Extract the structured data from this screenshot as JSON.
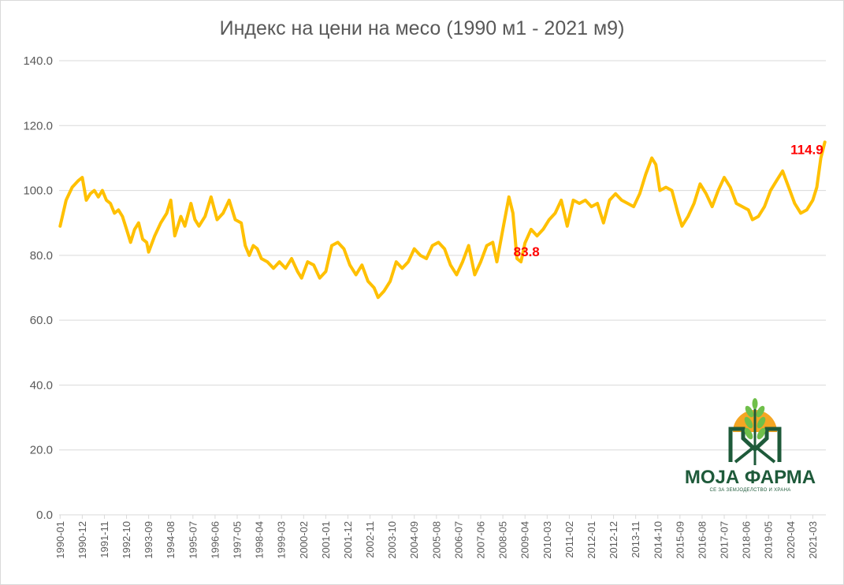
{
  "chart_data": {
    "type": "line",
    "title": "Индекс на цени на месо (1990 м1 - 2021 м9)",
    "xlabel": "",
    "ylabel": "",
    "ylim": [
      0,
      140
    ],
    "yticks": [
      "0.0",
      "20.0",
      "40.0",
      "60.0",
      "80.0",
      "100.0",
      "120.0",
      "140.0"
    ],
    "grid": "horizontal",
    "x_start": "1990-01",
    "x_end": "2021-09",
    "x_tick_labels": [
      "1990-01",
      "1990-12",
      "1991-11",
      "1992-10",
      "1993-09",
      "1994-08",
      "1995-07",
      "1996-06",
      "1997-05",
      "1998-04",
      "1999-03",
      "2000-02",
      "2001-01",
      "2001-12",
      "2002-11",
      "2003-10",
      "2004-09",
      "2005-08",
      "2006-07",
      "2007-06",
      "2008-05",
      "2009-04",
      "2010-03",
      "2011-02",
      "2012-01",
      "2012-12",
      "2013-11",
      "2014-10",
      "2015-09",
      "2016-08",
      "2017-07",
      "2018-06",
      "2019-05",
      "2020-04",
      "2021-03"
    ],
    "series": [
      {
        "name": "",
        "color": "#FFC000",
        "points": [
          [
            "1990-01",
            89
          ],
          [
            "1990-04",
            97
          ],
          [
            "1990-07",
            101
          ],
          [
            "1990-10",
            103
          ],
          [
            "1990-12",
            104
          ],
          [
            "1991-02",
            97
          ],
          [
            "1991-04",
            99
          ],
          [
            "1991-06",
            100
          ],
          [
            "1991-08",
            98
          ],
          [
            "1991-10",
            100
          ],
          [
            "1991-12",
            97
          ],
          [
            "1992-02",
            96
          ],
          [
            "1992-04",
            93
          ],
          [
            "1992-06",
            94
          ],
          [
            "1992-08",
            92
          ],
          [
            "1992-10",
            88
          ],
          [
            "1992-12",
            84
          ],
          [
            "1993-02",
            88
          ],
          [
            "1993-04",
            90
          ],
          [
            "1993-06",
            85
          ],
          [
            "1993-08",
            84
          ],
          [
            "1993-09",
            81
          ],
          [
            "1993-12",
            86
          ],
          [
            "1994-03",
            90
          ],
          [
            "1994-06",
            93
          ],
          [
            "1994-08",
            97
          ],
          [
            "1994-10",
            86
          ],
          [
            "1995-01",
            92
          ],
          [
            "1995-03",
            89
          ],
          [
            "1995-06",
            96
          ],
          [
            "1995-08",
            91
          ],
          [
            "1995-10",
            89
          ],
          [
            "1996-01",
            92
          ],
          [
            "1996-04",
            98
          ],
          [
            "1996-07",
            91
          ],
          [
            "1996-10",
            93
          ],
          [
            "1997-01",
            97
          ],
          [
            "1997-04",
            91
          ],
          [
            "1997-07",
            90
          ],
          [
            "1997-09",
            83
          ],
          [
            "1997-11",
            80
          ],
          [
            "1998-01",
            83
          ],
          [
            "1998-03",
            82
          ],
          [
            "1998-05",
            79
          ],
          [
            "1998-08",
            78
          ],
          [
            "1998-11",
            76
          ],
          [
            "1999-02",
            78
          ],
          [
            "1999-05",
            76
          ],
          [
            "1999-08",
            79
          ],
          [
            "1999-11",
            75
          ],
          [
            "2000-01",
            73
          ],
          [
            "2000-04",
            78
          ],
          [
            "2000-07",
            77
          ],
          [
            "2000-10",
            73
          ],
          [
            "2001-01",
            75
          ],
          [
            "2001-04",
            83
          ],
          [
            "2001-07",
            84
          ],
          [
            "2001-10",
            82
          ],
          [
            "2002-01",
            77
          ],
          [
            "2002-04",
            74
          ],
          [
            "2002-07",
            77
          ],
          [
            "2002-10",
            72
          ],
          [
            "2003-01",
            70
          ],
          [
            "2003-03",
            67
          ],
          [
            "2003-06",
            69
          ],
          [
            "2003-09",
            72
          ],
          [
            "2003-12",
            78
          ],
          [
            "2004-03",
            76
          ],
          [
            "2004-06",
            78
          ],
          [
            "2004-09",
            82
          ],
          [
            "2004-12",
            80
          ],
          [
            "2005-03",
            79
          ],
          [
            "2005-06",
            83
          ],
          [
            "2005-09",
            84
          ],
          [
            "2005-12",
            82
          ],
          [
            "2006-03",
            77
          ],
          [
            "2006-06",
            74
          ],
          [
            "2006-09",
            78
          ],
          [
            "2006-12",
            83
          ],
          [
            "2007-03",
            74
          ],
          [
            "2007-06",
            78
          ],
          [
            "2007-09",
            83
          ],
          [
            "2007-12",
            84
          ],
          [
            "2008-02",
            78
          ],
          [
            "2008-05",
            88
          ],
          [
            "2008-08",
            98
          ],
          [
            "2008-10",
            93
          ],
          [
            "2008-12",
            79
          ],
          [
            "2009-02",
            78
          ],
          [
            "2009-04",
            83.8
          ],
          [
            "2009-07",
            88
          ],
          [
            "2009-10",
            86
          ],
          [
            "2010-01",
            88
          ],
          [
            "2010-04",
            91
          ],
          [
            "2010-07",
            93
          ],
          [
            "2010-10",
            97
          ],
          [
            "2011-01",
            89
          ],
          [
            "2011-04",
            97
          ],
          [
            "2011-07",
            96
          ],
          [
            "2011-10",
            97
          ],
          [
            "2012-01",
            95
          ],
          [
            "2012-04",
            96
          ],
          [
            "2012-07",
            90
          ],
          [
            "2012-10",
            97
          ],
          [
            "2013-01",
            99
          ],
          [
            "2013-04",
            97
          ],
          [
            "2013-07",
            96
          ],
          [
            "2013-10",
            95
          ],
          [
            "2014-01",
            99
          ],
          [
            "2014-04",
            105
          ],
          [
            "2014-07",
            110
          ],
          [
            "2014-09",
            108
          ],
          [
            "2014-11",
            100
          ],
          [
            "2015-02",
            101
          ],
          [
            "2015-05",
            100
          ],
          [
            "2015-08",
            93
          ],
          [
            "2015-10",
            89
          ],
          [
            "2016-01",
            92
          ],
          [
            "2016-04",
            96
          ],
          [
            "2016-07",
            102
          ],
          [
            "2016-10",
            99
          ],
          [
            "2017-01",
            95
          ],
          [
            "2017-04",
            100
          ],
          [
            "2017-07",
            104
          ],
          [
            "2017-10",
            101
          ],
          [
            "2018-01",
            96
          ],
          [
            "2018-04",
            95
          ],
          [
            "2018-07",
            94
          ],
          [
            "2018-09",
            91
          ],
          [
            "2018-12",
            92
          ],
          [
            "2019-03",
            95
          ],
          [
            "2019-06",
            100
          ],
          [
            "2019-09",
            103
          ],
          [
            "2019-12",
            106
          ],
          [
            "2020-03",
            101
          ],
          [
            "2020-06",
            96
          ],
          [
            "2020-09",
            93
          ],
          [
            "2020-12",
            94
          ],
          [
            "2021-03",
            97
          ],
          [
            "2021-05",
            101
          ],
          [
            "2021-07",
            110
          ],
          [
            "2021-09",
            114.9
          ]
        ]
      }
    ],
    "annotations": [
      {
        "x": "2009-04",
        "y": 83.8,
        "label": "83.8"
      },
      {
        "x": "2021-09",
        "y": 114.9,
        "label": "114.9"
      }
    ]
  },
  "logo": {
    "name": "МОЈА ФАРМА",
    "tagline": "СЕ ЗА ЗЕМЈОДЕЛСТВО И ХРАНА",
    "colors": {
      "green": "#1e5a3a",
      "leaf": "#6fbf4a",
      "sun": "#f5a623"
    }
  }
}
